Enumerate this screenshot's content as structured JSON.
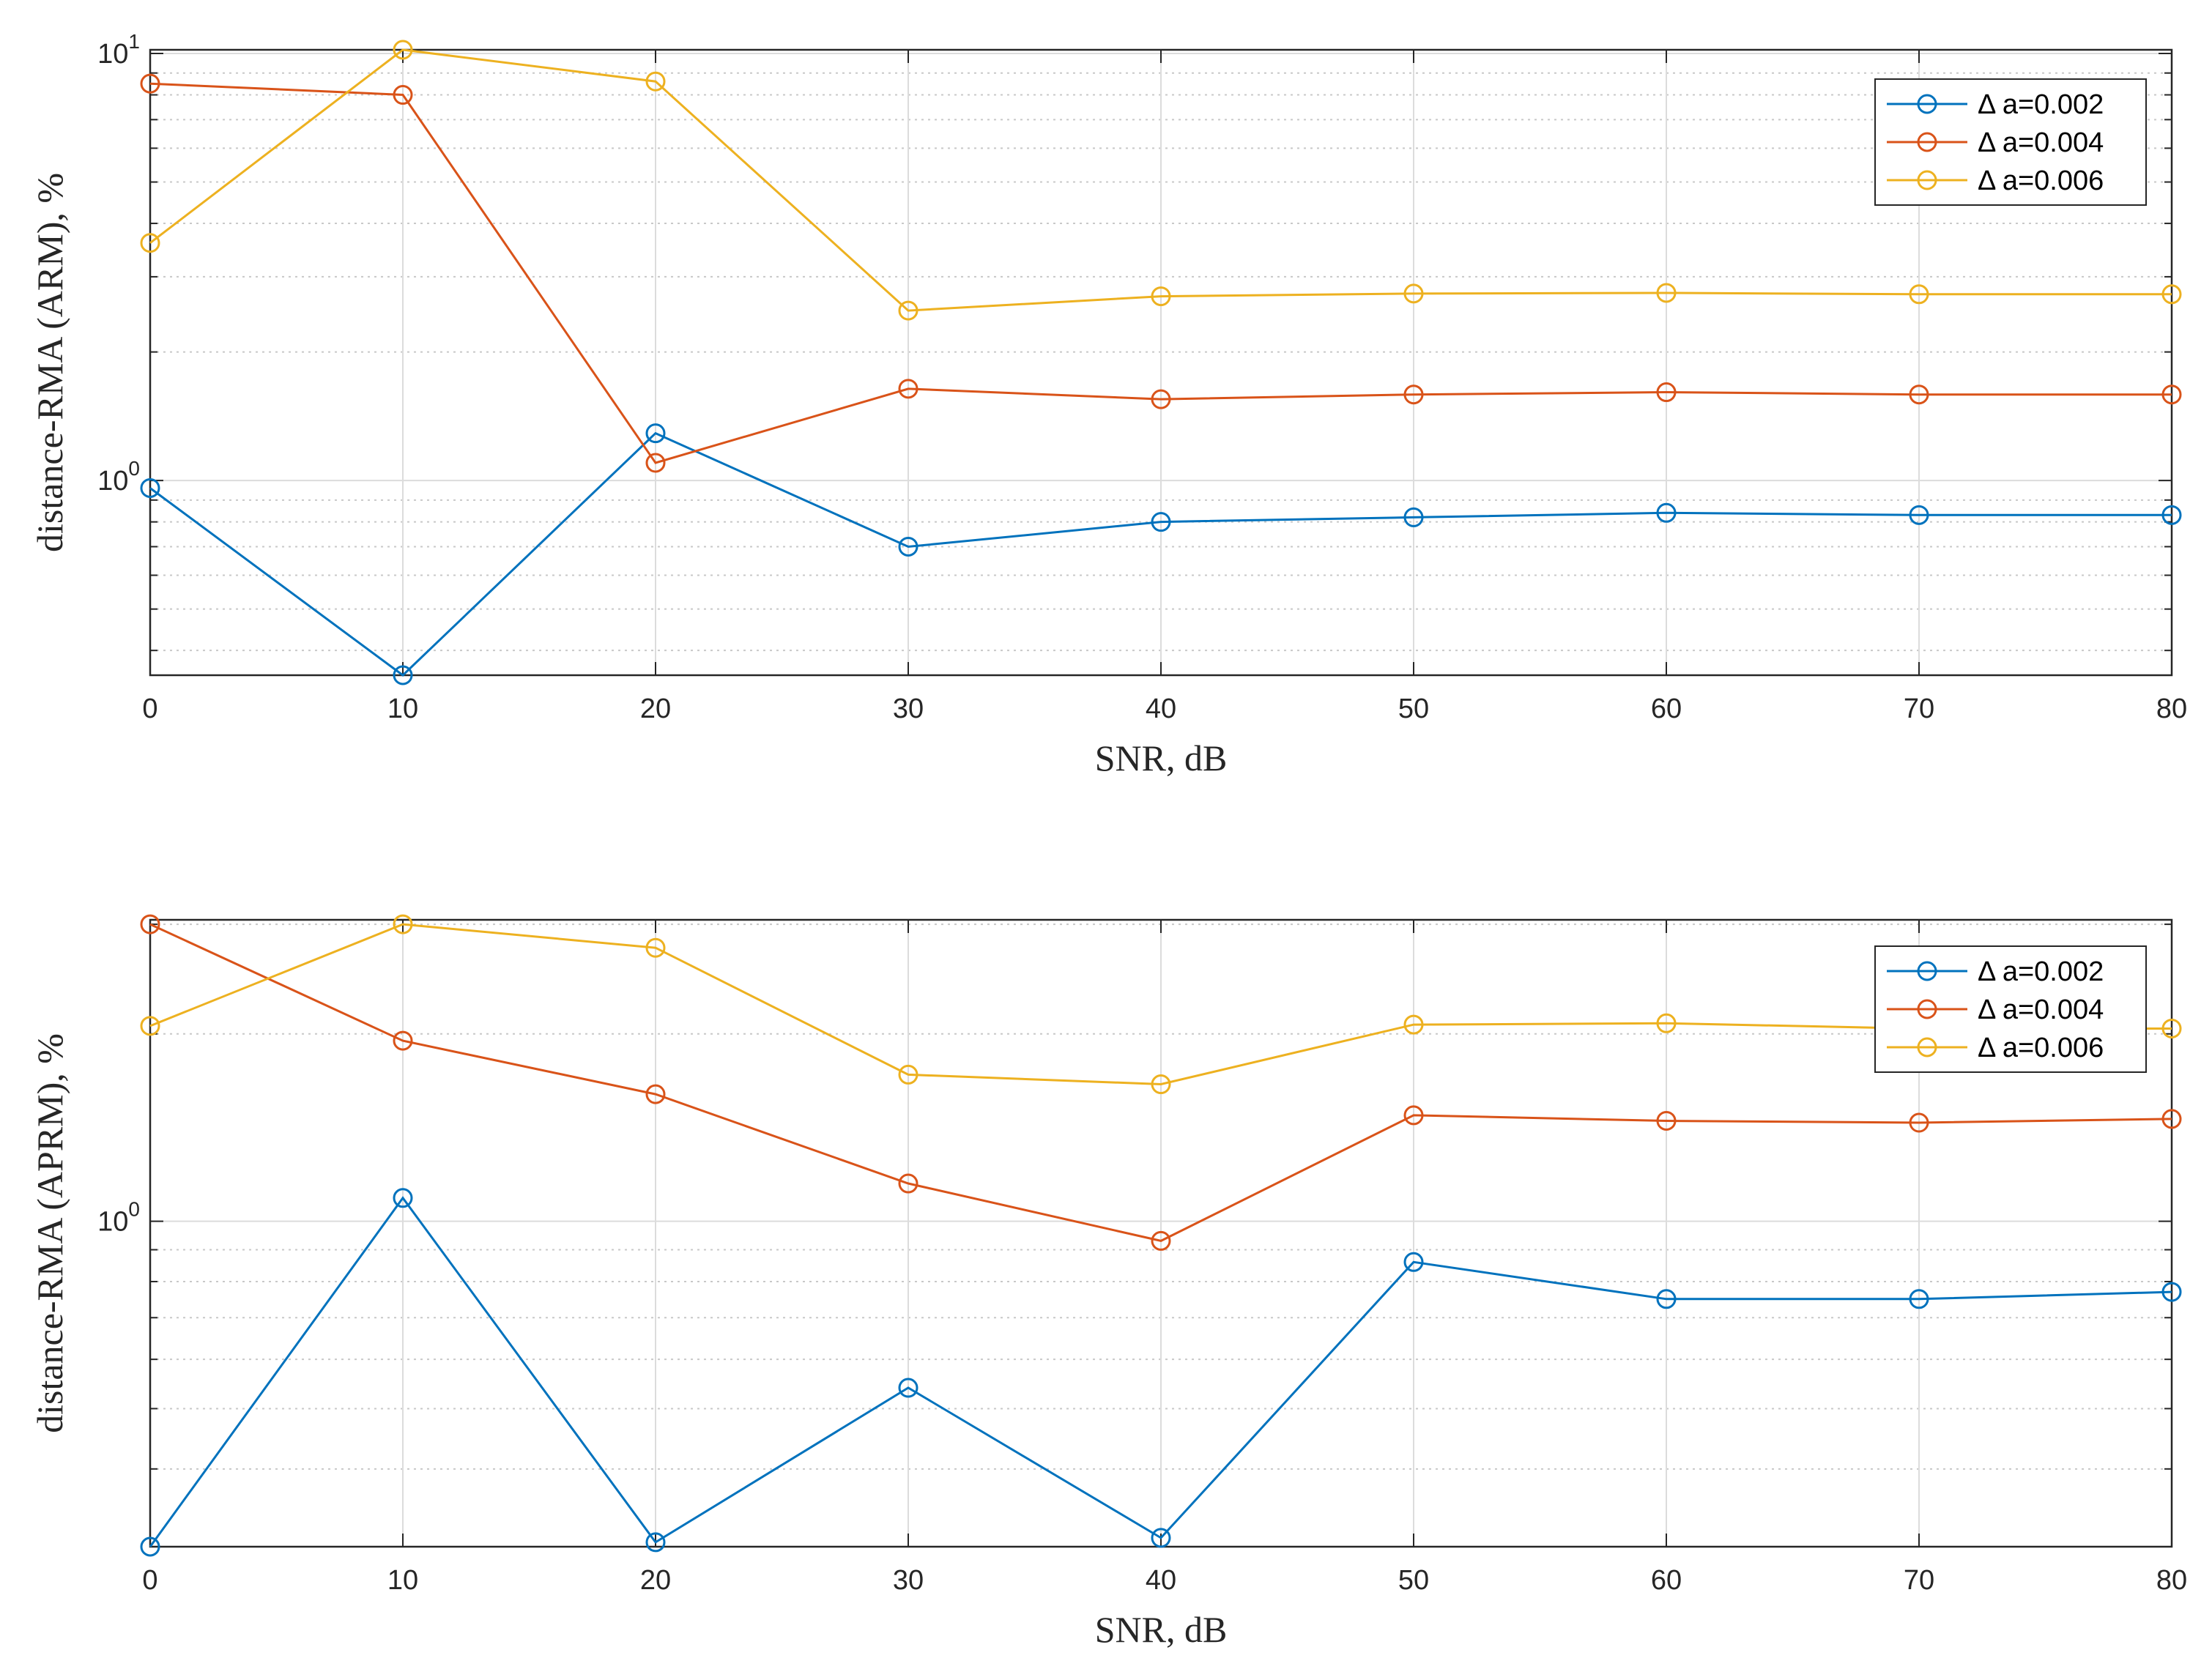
{
  "chart_data": [
    {
      "type": "line",
      "title": "",
      "xlabel": "SNR, dB",
      "ylabel": "distance-RMA (ARM), %",
      "yscale": "log",
      "xlim": [
        0,
        80
      ],
      "ylim": [
        0.35,
        10.2
      ],
      "grid": true,
      "legend_position": "top-right",
      "x": [
        0,
        10,
        20,
        30,
        40,
        50,
        60,
        70,
        80
      ],
      "x_ticks": [
        "0",
        "10",
        "20",
        "30",
        "40",
        "50",
        "60",
        "70",
        "80"
      ],
      "y_major_ticks": [
        {
          "value": 1,
          "base": "10",
          "exp": "0"
        },
        {
          "value": 10,
          "base": "10",
          "exp": "1"
        }
      ],
      "y_minor_ticks": [
        0.4,
        0.5,
        0.6,
        0.7,
        0.8,
        0.9,
        2,
        3,
        4,
        5,
        6,
        7,
        8,
        9
      ],
      "series": [
        {
          "name": "Δ a=0.002",
          "color": "#0072BD",
          "values": [
            0.96,
            0.35,
            1.29,
            0.7,
            0.8,
            0.82,
            0.84,
            0.83,
            0.83
          ]
        },
        {
          "name": "Δ a=0.004",
          "color": "#D95319",
          "values": [
            8.5,
            8.0,
            1.1,
            1.64,
            1.55,
            1.59,
            1.61,
            1.59,
            1.59
          ]
        },
        {
          "name": "Δ a=0.006",
          "color": "#EDB120",
          "values": [
            3.6,
            10.2,
            8.6,
            2.5,
            2.7,
            2.74,
            2.75,
            2.73,
            2.73
          ]
        }
      ]
    },
    {
      "type": "line",
      "title": "",
      "xlabel": "SNR, dB",
      "ylabel": "distance-RMA (APRM), %",
      "yscale": "log",
      "xlim": [
        0,
        80
      ],
      "ylim": [
        0.3,
        3.05
      ],
      "grid": true,
      "legend_position": "top-right",
      "x": [
        0,
        10,
        20,
        30,
        40,
        50,
        60,
        70,
        80
      ],
      "x_ticks": [
        "0",
        "10",
        "20",
        "30",
        "40",
        "50",
        "60",
        "70",
        "80"
      ],
      "y_major_ticks": [
        {
          "value": 1,
          "base": "10",
          "exp": "0"
        }
      ],
      "y_minor_ticks": [
        0.4,
        0.5,
        0.6,
        0.7,
        0.8,
        0.9,
        2,
        3
      ],
      "series": [
        {
          "name": "Δ a=0.002",
          "color": "#0072BD",
          "values": [
            0.3,
            1.09,
            0.305,
            0.54,
            0.31,
            0.86,
            0.75,
            0.75,
            0.77
          ]
        },
        {
          "name": "Δ a=0.004",
          "color": "#D95319",
          "values": [
            3.0,
            1.95,
            1.6,
            1.15,
            0.93,
            1.48,
            1.45,
            1.44,
            1.46
          ]
        },
        {
          "name": "Δ a=0.006",
          "color": "#EDB120",
          "values": [
            2.06,
            3.0,
            2.75,
            1.72,
            1.66,
            2.07,
            2.08,
            2.04,
            2.04
          ]
        }
      ]
    }
  ]
}
